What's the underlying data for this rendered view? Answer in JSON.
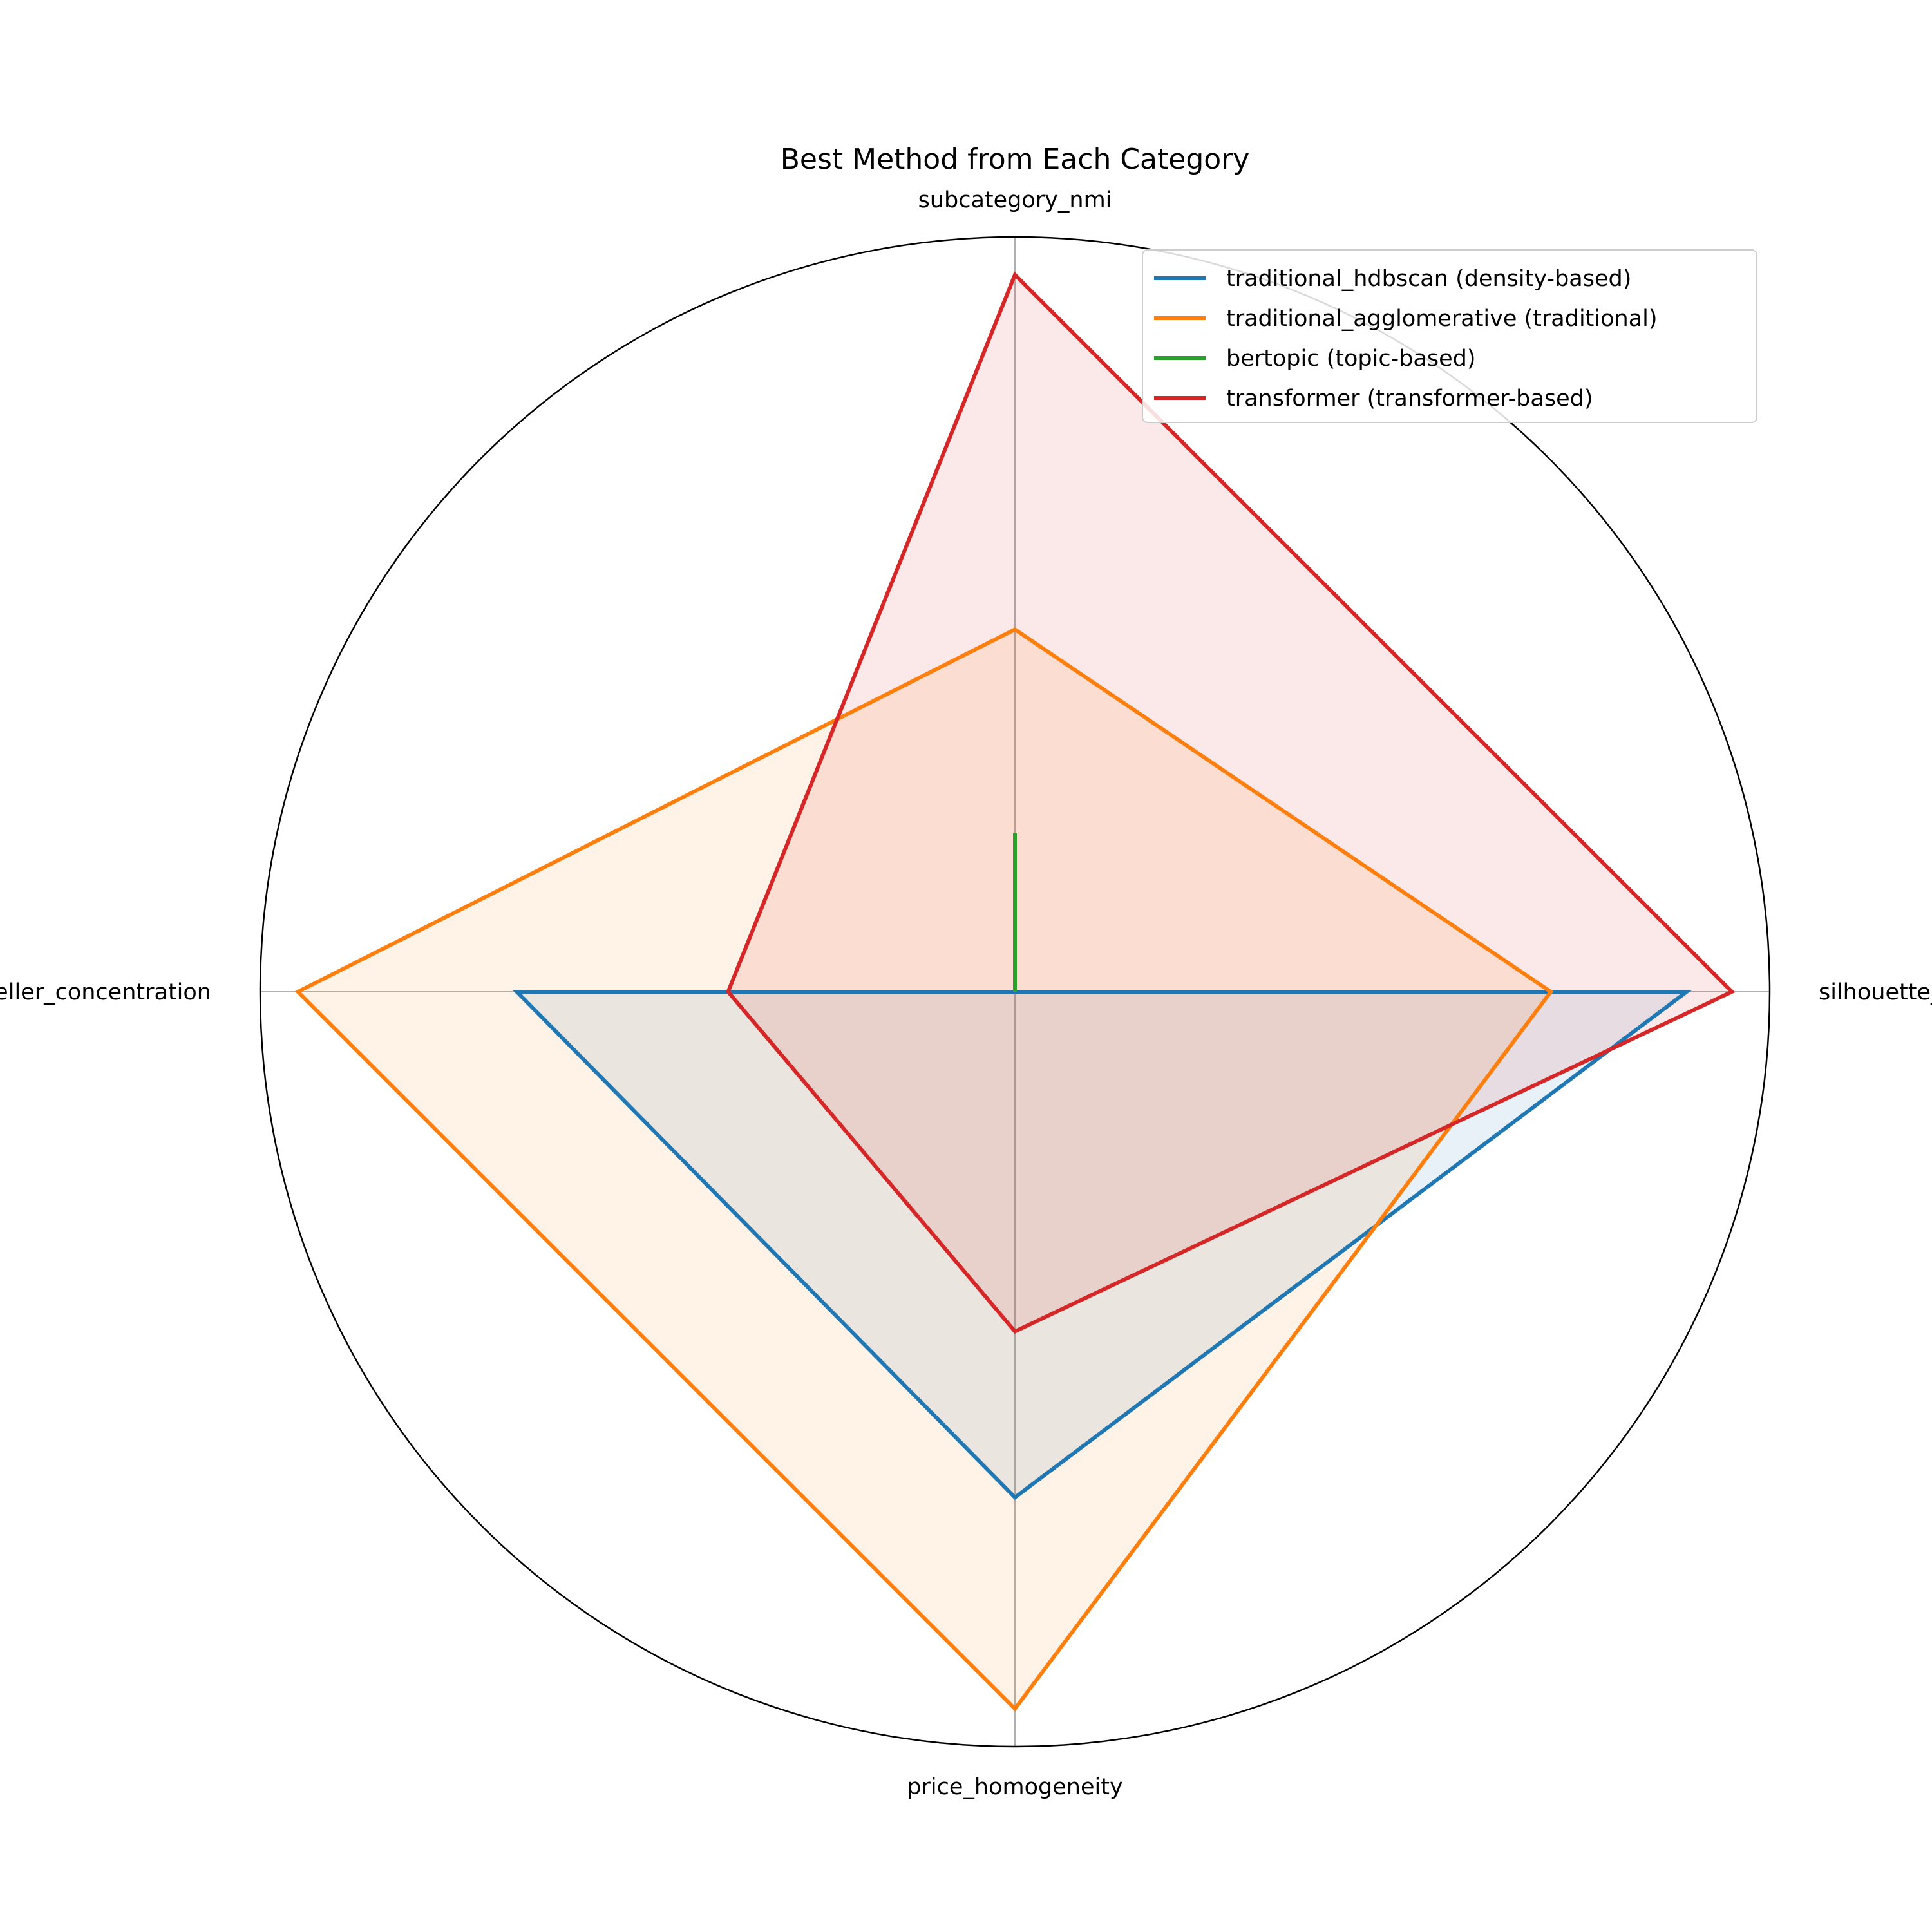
{
  "chart_data": {
    "type": "radar",
    "title": "Best Method from Each Category",
    "axes": [
      "subcategory_nmi",
      "silhouette_score",
      "price_homogeneity",
      "avg_top_seller_concentration"
    ],
    "rlim": [
      0,
      1
    ],
    "grid": false,
    "legend_position": "top-right",
    "series": [
      {
        "name": "traditional_hdbscan (density-based)",
        "color": "#1f77b4",
        "values": [
          0.0,
          0.89,
          0.67,
          0.66
        ]
      },
      {
        "name": "traditional_agglomerative (traditional)",
        "color": "#ff7f0e",
        "values": [
          0.48,
          0.71,
          0.95,
          0.95
        ]
      },
      {
        "name": "bertopic (topic-based)",
        "color": "#2ca02c",
        "values": [
          0.21,
          0.0,
          0.0,
          0.0
        ]
      },
      {
        "name": "transformer (transformer-based)",
        "color": "#d62728",
        "values": [
          0.95,
          0.95,
          0.45,
          0.38
        ]
      }
    ]
  }
}
